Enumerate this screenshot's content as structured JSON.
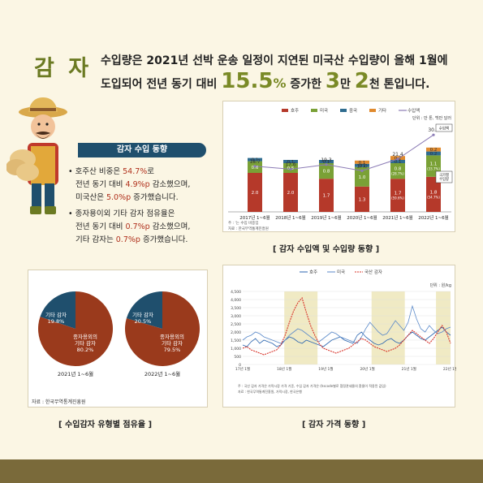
{
  "title": "감 자",
  "headline": {
    "line1": "수입량은 2021년 선박 운송 일정이 지연된 미국산 수입량이 올해 1월에",
    "line2_pre": "도입되어 전년 동기 대비 ",
    "pct": "15.5",
    "pct_unit": "%",
    "line2_mid": " 증가한 ",
    "n1": "3",
    "n1_unit": "만 ",
    "n2": "2",
    "n2_unit": "천 톤",
    "line2_post": "입니다."
  },
  "section": {
    "title": "감자 수입 동향",
    "bullets": [
      {
        "a": "호주산 비중은 ",
        "r": "54.7%",
        "b": "로"
      },
      {
        "a": "전년 동기 대비 ",
        "r": "4.9%p",
        "b": " 감소했으며,"
      },
      {
        "a": "미국산은 ",
        "r": "5.0%p",
        "b": " 증가했습니다."
      },
      {
        "a": "종자용이외 기타 감자 점유율은",
        "r": "",
        "b": ""
      },
      {
        "a": "전년 동기 대비 ",
        "r": "0.7%p",
        "b": " 감소했으며,"
      },
      {
        "a": "기타 감자는 ",
        "r": "0.7%p",
        "b": " 증가했습니다."
      }
    ]
  },
  "chart1": {
    "caption": "[ 감자 수입액 및 수입량 동향 ]",
    "unit": "단위 : 만 톤, 백만 달러",
    "legend": [
      "호주",
      "미국",
      "중국",
      "기타",
      "수입액"
    ],
    "colors": {
      "australia": "#b5392a",
      "usa": "#7aa136",
      "china": "#2f6c8f",
      "other": "#e08a2e",
      "line": "#8b7bb5"
    },
    "note1": "주 : '는 수입 비중임",
    "note2": "자료 : 한국무역통계진흥원",
    "box_amount": "수입액",
    "box_volume": "국가별\n수입량"
  },
  "chart_data": [
    {
      "type": "bar",
      "categories": [
        "2017년 1~6월",
        "2018년 1~6월",
        "2019년 1~6월",
        "2020년 1~6월",
        "2021년 1~6월",
        "2022년 1~6월"
      ],
      "series": [
        {
          "name": "호주",
          "values": [
            2.0,
            2.0,
            1.7,
            1.3,
            1.7,
            1.8
          ],
          "labels": [
            "2.0",
            "2.0",
            "1.7",
            "1.3",
            "1.7\n(59.6%)",
            "1.8\n(54.7%)"
          ]
        },
        {
          "name": "미국",
          "values": [
            0.6,
            0.5,
            0.8,
            1.0,
            0.8,
            1.1
          ],
          "labels": [
            "0.6",
            "0.5",
            "0.8",
            "1.0",
            "0.8\n(28.7%)",
            "1.1\n(33.7%)"
          ]
        },
        {
          "name": "중국",
          "values": [
            0.1,
            0.1,
            0.1,
            0.1,
            0.1,
            0.2
          ],
          "labels": [
            "0.1",
            "0.1",
            "0.1",
            "0.1",
            "0.1",
            "0.2"
          ]
        },
        {
          "name": "기타",
          "values": [
            0,
            0,
            0,
            0.1,
            0.2,
            0.2
          ],
          "labels": [
            "",
            "",
            "",
            "0.1",
            "0.2",
            "0.2"
          ]
        }
      ],
      "line": {
        "name": "수입액",
        "values": [
          18.7,
          17.6,
          19.3,
          17.0,
          21.4,
          30.4
        ]
      }
    },
    {
      "type": "pie",
      "title": "2021년 1~6월",
      "slices": [
        {
          "label": "기타 감자",
          "value": 19.8
        },
        {
          "label": "종자용외의 기타 감자",
          "value": 80.2
        }
      ]
    },
    {
      "type": "pie",
      "title": "2022년 1~6월",
      "slices": [
        {
          "label": "기타 감자",
          "value": 20.5
        },
        {
          "label": "종자용외의 기타 감자",
          "value": 79.5
        }
      ]
    },
    {
      "type": "line",
      "unit": "단위 : 원/kg",
      "legend": [
        "호주",
        "미국",
        "국산 감자"
      ],
      "yticks": [
        "4,500",
        "4,000",
        "3,500",
        "3,000",
        "2,500",
        "2,000",
        "1,500",
        "1,000",
        "500",
        "0"
      ],
      "ylim": [
        0,
        4500
      ],
      "xlabels": [
        "17년 1월",
        "18년 1월",
        "19년 1월",
        "20년 1월",
        "21년 1월",
        "22년 1월"
      ],
      "series": [
        {
          "name": "호주",
          "values": [
            1200,
            1100,
            1400,
            1600,
            1300,
            1500,
            1400,
            1300,
            1100,
            1200,
            1500,
            1700,
            1600,
            1400,
            1300,
            1500,
            1400,
            1300,
            1200,
            1100,
            1300,
            1500,
            1600,
            1700,
            1500,
            1400,
            1300,
            1800,
            2000,
            1700,
            1500,
            1300,
            1200,
            1300,
            1500,
            1600,
            1400,
            1300,
            1500,
            1800,
            2000,
            1800,
            1600,
            1500,
            1700,
            1900,
            2100,
            2300,
            2000,
            1800
          ]
        },
        {
          "name": "미국",
          "values": [
            1500,
            1700,
            1800,
            2000,
            1900,
            1700,
            1600,
            1500,
            1400,
            1300,
            1500,
            1800,
            2000,
            2200,
            2100,
            1900,
            1700,
            1500,
            1400,
            1600,
            1800,
            2000,
            1900,
            1700,
            1600,
            1500,
            1400,
            1300,
            1700,
            2200,
            2600,
            2300,
            2000,
            1800,
            1900,
            2300,
            2700,
            2400,
            2100,
            2600,
            3600,
            2800,
            2200,
            2000,
            2400,
            2100,
            1900,
            2000,
            2200,
            2300
          ]
        },
        {
          "name": "국산 감자",
          "values": [
            1000,
            1100,
            900,
            800,
            700,
            600,
            700,
            800,
            900,
            1200,
            1800,
            2600,
            3300,
            3800,
            4100,
            3200,
            2400,
            1800,
            1300,
            1000,
            900,
            800,
            700,
            800,
            900,
            1000,
            1200,
            1400,
            1600,
            1500,
            1300,
            1100,
            1000,
            900,
            800,
            900,
            1000,
            1200,
            1500,
            1800,
            2100,
            1900,
            1700,
            1500,
            1300,
            1600,
            2000,
            2400,
            2000,
            1300
          ]
        }
      ]
    }
  ],
  "pie_section": {
    "caption": "[ 수입감자 유형별 점유율 ]",
    "source": "자료 : 한국무역통계진흥원",
    "pie1": {
      "small_label": "기타 감자",
      "small_val": "19.8%",
      "big_label": "종자용외의\n기타 감자",
      "big_val": "80.2%",
      "year": "2021년 1~6월"
    },
    "pie2": {
      "small_label": "기타 감자",
      "small_val": "20.5%",
      "big_label": "종자용외의\n기타 감자",
      "big_val": "79.5%",
      "year": "2022년 1~6월"
    },
    "colors": {
      "small": "#1f4f6d",
      "big": "#9a3a1c"
    }
  },
  "chart3": {
    "caption": "[ 감자 가격 동향 ]",
    "note1": "주 : 국산 감자 가격은 가락시장 가격 기준, 수입 감자 가격은 (hscode별로 협정관세율의 환율이 적용된 값임)",
    "note2": "자료 : 한국무역통계진흥원, 가락시장, 한국은행",
    "colors": {
      "australia": "#2b66b0",
      "usa": "#5b8ac9",
      "domestic": "#d8342a",
      "shade": "#f0eac4"
    }
  }
}
